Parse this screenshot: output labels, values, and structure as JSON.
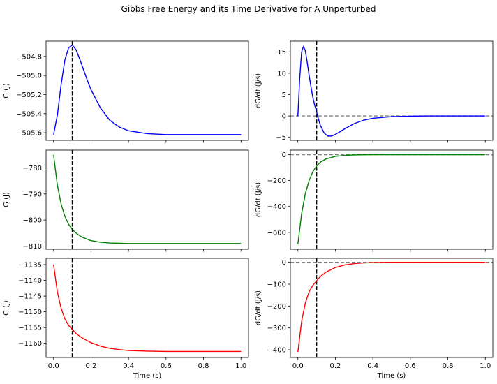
{
  "figure": {
    "suptitle": "Gibbs Free Energy and its Time Derivative for A Unperturbed"
  },
  "chart_data": [
    {
      "type": "line",
      "panel": "row1-left",
      "xlabel": "",
      "ylabel": "G (J)",
      "xlim": [
        -0.04,
        1.04
      ],
      "ylim": [
        -505.68,
        -504.64
      ],
      "yticks": [
        -505.6,
        -505.4,
        -505.2,
        -505.0,
        -504.8
      ],
      "ytick_labels": [
        "−505.6",
        "−505.4",
        "−505.2",
        "−505.0",
        "−504.8"
      ],
      "xticks": [
        0,
        0.2,
        0.4,
        0.6,
        0.8,
        1.0
      ],
      "xtick_labels": [],
      "color": "#0000ff",
      "x": [
        0,
        0.02,
        0.04,
        0.06,
        0.08,
        0.1,
        0.12,
        0.14,
        0.16,
        0.18,
        0.2,
        0.25,
        0.3,
        0.35,
        0.4,
        0.5,
        0.6,
        0.7,
        0.8,
        0.9,
        1.0
      ],
      "y": [
        -505.62,
        -505.42,
        -505.1,
        -504.84,
        -504.71,
        -504.68,
        -504.73,
        -504.83,
        -504.94,
        -505.05,
        -505.15,
        -505.34,
        -505.47,
        -505.54,
        -505.58,
        -505.61,
        -505.62,
        -505.62,
        -505.62,
        -505.62,
        -505.62
      ],
      "vline_x": 0.1,
      "hline_y": null
    },
    {
      "type": "line",
      "panel": "row1-right",
      "xlabel": "",
      "ylabel": "dG/dt (J/s)",
      "xlim": [
        -0.04,
        1.04
      ],
      "ylim": [
        -5.7,
        17.5
      ],
      "yticks": [
        -5,
        0,
        5,
        10,
        15
      ],
      "ytick_labels": [
        "−5",
        "0",
        "5",
        "10",
        "15"
      ],
      "xticks": [
        0,
        0.2,
        0.4,
        0.6,
        0.8,
        1.0
      ],
      "xtick_labels": [],
      "color": "#0000ff",
      "x": [
        0,
        0.01,
        0.02,
        0.03,
        0.04,
        0.05,
        0.06,
        0.07,
        0.08,
        0.09,
        0.1,
        0.11,
        0.12,
        0.14,
        0.16,
        0.18,
        0.2,
        0.22,
        0.25,
        0.3,
        0.35,
        0.4,
        0.5,
        0.6,
        0.7,
        0.8,
        0.9,
        1.0
      ],
      "y": [
        0,
        9.0,
        15.0,
        16.3,
        15.2,
        12.5,
        9.5,
        6.8,
        4.3,
        2.5,
        1.0,
        -0.8,
        -2.2,
        -4.0,
        -4.7,
        -4.7,
        -4.3,
        -3.8,
        -3.0,
        -1.8,
        -1.0,
        -0.55,
        -0.15,
        -0.05,
        0,
        0,
        0,
        0
      ],
      "vline_x": 0.1,
      "hline_y": 0
    },
    {
      "type": "line",
      "panel": "row2-left",
      "xlabel": "",
      "ylabel": "G (J)",
      "xlim": [
        -0.04,
        1.04
      ],
      "ylim": [
        -811.2,
        -773.2
      ],
      "yticks": [
        -810,
        -800,
        -790,
        -780
      ],
      "ytick_labels": [
        "−810",
        "−800",
        "−790",
        "−780"
      ],
      "xticks": [
        0,
        0.2,
        0.4,
        0.6,
        0.8,
        1.0
      ],
      "xtick_labels": [],
      "color": "#008000",
      "x": [
        0,
        0.02,
        0.04,
        0.06,
        0.08,
        0.1,
        0.12,
        0.15,
        0.2,
        0.25,
        0.3,
        0.35,
        0.4,
        0.5,
        0.6,
        0.7,
        0.8,
        0.9,
        1.0
      ],
      "y": [
        -775.0,
        -786.5,
        -793.8,
        -798.5,
        -801.6,
        -803.6,
        -805.0,
        -806.5,
        -807.9,
        -808.5,
        -808.8,
        -808.9,
        -809.0,
        -809.0,
        -809.0,
        -809.0,
        -809.0,
        -809.0,
        -809.0
      ],
      "vline_x": 0.1,
      "hline_y": null
    },
    {
      "type": "line",
      "panel": "row2-right",
      "xlabel": "",
      "ylabel": "dG/dt (J/s)",
      "xlim": [
        -0.04,
        1.04
      ],
      "ylim": [
        -730,
        35
      ],
      "yticks": [
        -600,
        -400,
        -200,
        0
      ],
      "ytick_labels": [
        "−600",
        "−400",
        "−200",
        "0"
      ],
      "xticks": [
        0,
        0.2,
        0.4,
        0.6,
        0.8,
        1.0
      ],
      "xtick_labels": [],
      "color": "#008000",
      "x": [
        0,
        0.02,
        0.04,
        0.06,
        0.08,
        0.1,
        0.12,
        0.15,
        0.2,
        0.25,
        0.3,
        0.35,
        0.4,
        0.5,
        0.6,
        0.7,
        0.8,
        0.9,
        1.0
      ],
      "y": [
        -690,
        -455,
        -300,
        -200,
        -130,
        -88,
        -58,
        -33,
        -13,
        -5.5,
        -2.3,
        -1,
        -0.4,
        0,
        0,
        0,
        0,
        0,
        0
      ],
      "vline_x": 0.1,
      "hline_y": 0
    },
    {
      "type": "line",
      "panel": "row3-left",
      "xlabel": "Time (s)",
      "ylabel": "G (J)",
      "xlim": [
        -0.04,
        1.04
      ],
      "ylim": [
        -1164.5,
        -1133.0
      ],
      "yticks": [
        -1160,
        -1155,
        -1150,
        -1145,
        -1140,
        -1135
      ],
      "ytick_labels": [
        "−1160",
        "−1155",
        "−1150",
        "−1145",
        "−1140",
        "−1135"
      ],
      "xticks": [
        0,
        0.2,
        0.4,
        0.6,
        0.8,
        1.0
      ],
      "xtick_labels": [
        "0.0",
        "0.2",
        "0.4",
        "0.6",
        "0.8",
        "1.0"
      ],
      "color": "#ff0000",
      "x": [
        0,
        0.02,
        0.04,
        0.06,
        0.08,
        0.1,
        0.12,
        0.15,
        0.2,
        0.25,
        0.3,
        0.35,
        0.4,
        0.5,
        0.6,
        0.7,
        0.8,
        0.9,
        1.0
      ],
      "y": [
        -1135.0,
        -1143.6,
        -1148.8,
        -1152.2,
        -1154.3,
        -1155.6,
        -1156.9,
        -1158.2,
        -1159.8,
        -1160.9,
        -1161.6,
        -1162.0,
        -1162.3,
        -1162.5,
        -1162.6,
        -1162.6,
        -1162.6,
        -1162.6,
        -1162.6
      ],
      "vline_x": 0.1,
      "hline_y": null
    },
    {
      "type": "line",
      "panel": "row3-right",
      "xlabel": "Time (s)",
      "ylabel": "dG/dt (J/s)",
      "xlim": [
        -0.04,
        1.04
      ],
      "ylim": [
        -435,
        18
      ],
      "yticks": [
        -400,
        -300,
        -200,
        -100,
        0
      ],
      "ytick_labels": [
        "−400",
        "−300",
        "−200",
        "−100",
        "0"
      ],
      "xticks": [
        0,
        0.2,
        0.4,
        0.6,
        0.8,
        1.0
      ],
      "xtick_labels": [
        "0.0",
        "0.2",
        "0.4",
        "0.6",
        "0.8",
        "1.0"
      ],
      "color": "#ff0000",
      "x": [
        0,
        0.02,
        0.04,
        0.06,
        0.08,
        0.1,
        0.12,
        0.15,
        0.2,
        0.25,
        0.3,
        0.35,
        0.4,
        0.5,
        0.6,
        0.7,
        0.8,
        0.9,
        1.0
      ],
      "y": [
        -410,
        -270,
        -185,
        -135,
        -105,
        -85,
        -65,
        -45,
        -24,
        -12,
        -6,
        -3,
        -1.5,
        0,
        0,
        0,
        0,
        0,
        0
      ],
      "vline_x": 0.1,
      "hline_y": 0
    }
  ]
}
